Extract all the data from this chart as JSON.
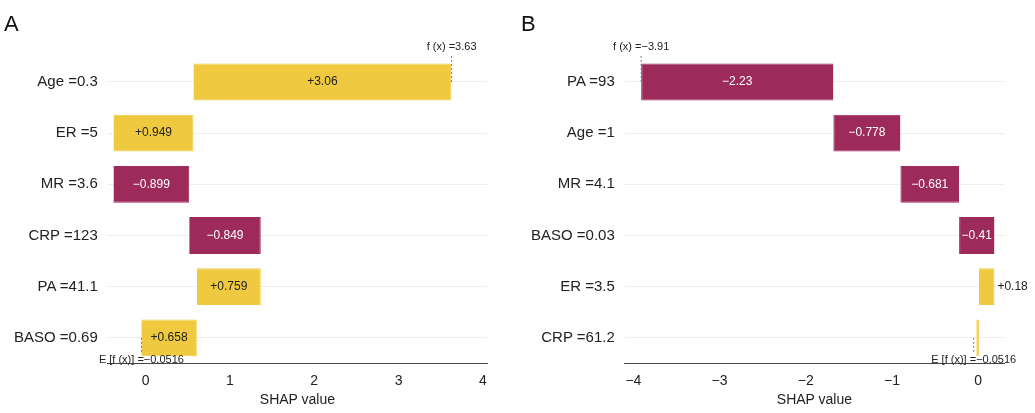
{
  "chart_data": [
    {
      "type": "bar",
      "title": "A",
      "orientation": "horizontal",
      "xlabel": "SHAP value",
      "categories": [
        "Age =0.3",
        "ER =5",
        "MR =3.6",
        "CRP =123",
        "PA =41.1",
        "BASO =0.69"
      ],
      "values": [
        3.06,
        0.949,
        -0.899,
        -0.849,
        0.759,
        0.658
      ],
      "base": [
        0.5664,
        -0.3826,
        0.5164,
        1.3654,
        0.6064,
        -0.0516
      ],
      "colors": [
        "#efc940",
        "#efc940",
        "#9c2a5b",
        "#9c2a5b",
        "#efc940",
        "#efc940"
      ],
      "value_labels": [
        "+3.06",
        "+0.949",
        "−0.899",
        "−0.849",
        "+0.759",
        "+0.658"
      ],
      "xlim": [
        -0.45,
        4.05
      ],
      "xticks": [
        0,
        1,
        2,
        3,
        4
      ],
      "grid": "y",
      "legend": false,
      "annotations": [
        {
          "text": "f (x) =3.63",
          "x": 3.63,
          "y": "Age =0.3"
        },
        {
          "text": "E [f (x)] =−0.0516",
          "x": -0.0516,
          "y": "BASO =0.69"
        }
      ]
    },
    {
      "type": "bar",
      "title": "B",
      "orientation": "horizontal",
      "xlabel": "SHAP value",
      "categories": [
        "PA =93",
        "Age =1",
        "MR =4.1",
        "BASO =0.03",
        "ER =3.5",
        "CRP =61.2"
      ],
      "values": [
        -2.23,
        -0.778,
        -0.681,
        -0.41,
        0.18,
        0.03
      ],
      "base": [
        -1.68,
        -0.902,
        -0.221,
        0.189,
        0.009,
        -0.021
      ],
      "colors": [
        "#9c2a5b",
        "#9c2a5b",
        "#9c2a5b",
        "#9c2a5b",
        "#efc940",
        "#efc940"
      ],
      "value_labels": [
        "−2.23",
        "−0.778",
        "−0.681",
        "−0.41",
        "+0.18",
        null
      ],
      "xlim": [
        -4.1,
        0.3
      ],
      "xticks": [
        {
          "value": -4,
          "label": "−4"
        },
        {
          "value": -3,
          "label": "−3"
        },
        {
          "value": -2,
          "label": "−2"
        },
        {
          "value": -1,
          "label": "−1"
        },
        0
      ],
      "grid": "y",
      "legend": false,
      "annotations": [
        {
          "text": "f (x) =−3.91",
          "x": -3.91,
          "y": "PA =93"
        },
        {
          "text": "E [f (x)] =−0.0516",
          "x": -0.0516,
          "y": "CRP =61.2"
        }
      ]
    }
  ]
}
